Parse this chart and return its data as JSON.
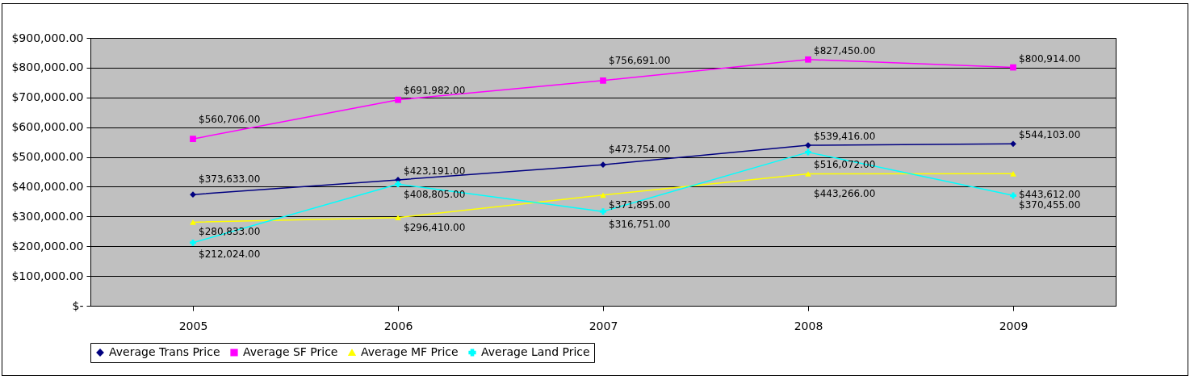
{
  "chart_data": {
    "type": "line",
    "categories": [
      "2005",
      "2006",
      "2007",
      "2008",
      "2009"
    ],
    "series": [
      {
        "name": "Average Trans Price",
        "color": "#000080",
        "marker": "diamond",
        "values": [
          373633,
          423191,
          473754,
          539416,
          544103
        ],
        "value_labels": [
          "$373,633.00",
          "$423,191.00",
          "$473,754.00",
          "$539,416.00",
          "$544,103.00"
        ]
      },
      {
        "name": "Average SF Price",
        "color": "#ff00ff",
        "marker": "square",
        "values": [
          560706,
          691982,
          756691,
          827450,
          800914
        ],
        "value_labels": [
          "$560,706.00",
          "$691,982.00",
          "$756,691.00",
          "$827,450.00",
          "$800,914.00"
        ]
      },
      {
        "name": "Average MF Price",
        "color": "#ffff00",
        "marker": "triangle",
        "values": [
          280833,
          296410,
          371895,
          443266,
          443612
        ],
        "value_labels": [
          "$280,833.00",
          "$296,410.00",
          "$371,895.00",
          "$443,266.00",
          "$443,612.00"
        ]
      },
      {
        "name": "Average Land Price",
        "color": "#00ffff",
        "marker": "cross",
        "values": [
          212024,
          408805,
          316751,
          516072,
          370455
        ],
        "value_labels": [
          "$212,024.00",
          "$408,805.00",
          "$316,751.00",
          "$516,072.00",
          "$370,455.00"
        ]
      }
    ],
    "ylim": [
      0,
      900000
    ],
    "yticks": [
      {
        "value": 0,
        "label": "$-"
      },
      {
        "value": 100000,
        "label": "$100,000.00"
      },
      {
        "value": 200000,
        "label": "$200,000.00"
      },
      {
        "value": 300000,
        "label": "$300,000.00"
      },
      {
        "value": 400000,
        "label": "$400,000.00"
      },
      {
        "value": 500000,
        "label": "$500,000.00"
      },
      {
        "value": 600000,
        "label": "$600,000.00"
      },
      {
        "value": 700000,
        "label": "$700,000.00"
      },
      {
        "value": 800000,
        "label": "$800,000.00"
      },
      {
        "value": 900000,
        "label": "$900,000.00"
      }
    ],
    "grid": "y",
    "legend": "bottom"
  }
}
